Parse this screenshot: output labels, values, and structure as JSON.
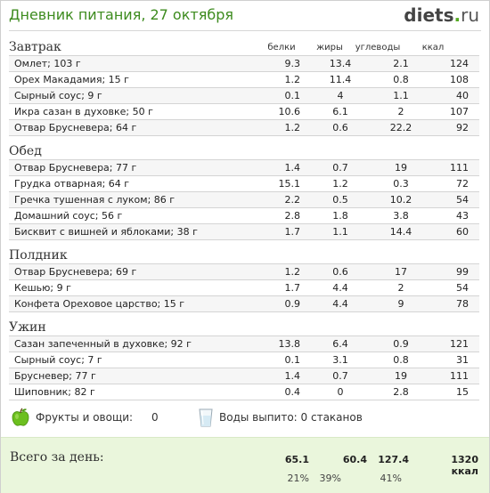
{
  "header": {
    "title": "Дневник питания, 27 октября",
    "logo_main": "diets",
    "logo_dot": ".",
    "logo_tld": "ru"
  },
  "columns": [
    "белки",
    "жиры",
    "углеводы",
    "ккал"
  ],
  "meals": [
    {
      "title": "Завтрак",
      "rows": [
        {
          "name": "Омлет; 103 г",
          "protein": "9.3",
          "fat": "13.4",
          "carbs": "2.1",
          "kcal": "124"
        },
        {
          "name": "Орех Макадамия; 15 г",
          "protein": "1.2",
          "fat": "11.4",
          "carbs": "0.8",
          "kcal": "108"
        },
        {
          "name": "Сырный соус; 9 г",
          "protein": "0.1",
          "fat": "4",
          "carbs": "1.1",
          "kcal": "40"
        },
        {
          "name": "Икра сазан в духовке; 50 г",
          "protein": "10.6",
          "fat": "6.1",
          "carbs": "2",
          "kcal": "107"
        },
        {
          "name": "Отвар Брусневера; 64 г",
          "protein": "1.2",
          "fat": "0.6",
          "carbs": "22.2",
          "kcal": "92"
        }
      ]
    },
    {
      "title": "Обед",
      "rows": [
        {
          "name": "Отвар Брусневера; 77 г",
          "protein": "1.4",
          "fat": "0.7",
          "carbs": "19",
          "kcal": "111"
        },
        {
          "name": "Грудка отварная; 64 г",
          "protein": "15.1",
          "fat": "1.2",
          "carbs": "0.3",
          "kcal": "72"
        },
        {
          "name": "Гречка тушенная с луком; 86 г",
          "protein": "2.2",
          "fat": "0.5",
          "carbs": "10.2",
          "kcal": "54"
        },
        {
          "name": "Домашний соус; 56 г",
          "protein": "2.8",
          "fat": "1.8",
          "carbs": "3.8",
          "kcal": "43"
        },
        {
          "name": "Бисквит с вишней и яблоками; 38 г",
          "protein": "1.7",
          "fat": "1.1",
          "carbs": "14.4",
          "kcal": "60"
        }
      ]
    },
    {
      "title": "Полдник",
      "rows": [
        {
          "name": "Отвар Брусневера; 69 г",
          "protein": "1.2",
          "fat": "0.6",
          "carbs": "17",
          "kcal": "99"
        },
        {
          "name": "Кешью; 9 г",
          "protein": "1.7",
          "fat": "4.4",
          "carbs": "2",
          "kcal": "54"
        },
        {
          "name": "Конфета Ореховое царство; 15 г",
          "protein": "0.9",
          "fat": "4.4",
          "carbs": "9",
          "kcal": "78"
        }
      ]
    },
    {
      "title": "Ужин",
      "rows": [
        {
          "name": "Сазан запеченный в духовке; 92 г",
          "protein": "13.8",
          "fat": "6.4",
          "carbs": "0.9",
          "kcal": "121"
        },
        {
          "name": "Сырный соус; 7 г",
          "protein": "0.1",
          "fat": "3.1",
          "carbs": "0.8",
          "kcal": "31"
        },
        {
          "name": "Брусневер; 77 г",
          "protein": "1.4",
          "fat": "0.7",
          "carbs": "19",
          "kcal": "111"
        },
        {
          "name": "Шиповник; 82 г",
          "protein": "0.4",
          "fat": "0",
          "carbs": "2.8",
          "kcal": "15"
        }
      ]
    }
  ],
  "extras": {
    "fruits_label": "Фрукты и овощи:",
    "fruits_value": "0",
    "water_label": "Воды выпито: 0 стаканов",
    "apple_icon": "apple-icon",
    "glass_icon": "water-glass-icon",
    "apple_color": "#6cbf1f"
  },
  "totals": {
    "label": "Всего за день:",
    "protein": "65.1",
    "fat": "60.4",
    "carbs": "127.4",
    "kcal": "1320 ккал",
    "protein_pct": "21%",
    "fat_pct": "39%",
    "carbs_pct": "41%",
    "bg_color": "#eaf6dc"
  }
}
